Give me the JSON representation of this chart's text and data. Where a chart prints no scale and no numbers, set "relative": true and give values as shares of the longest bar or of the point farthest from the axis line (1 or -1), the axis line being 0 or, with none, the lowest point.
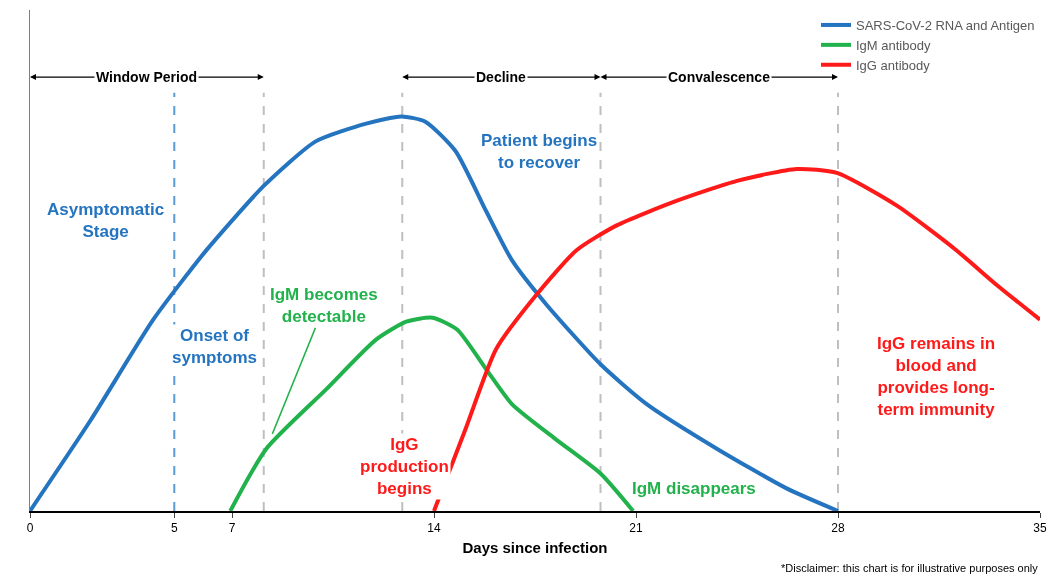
{
  "chart_data": {
    "type": "line",
    "relative": true,
    "xlabel": "Days since infection",
    "xlim": [
      0,
      35
    ],
    "xticks": [
      0,
      5,
      7,
      14,
      21,
      28,
      35
    ],
    "series": [
      {
        "name": "SARS-CoV-2 RNA and Antigen",
        "color": "#2474c0",
        "x": [
          0,
          2.1,
          4.27,
          6.1,
          8.1,
          9.9,
          11.65,
          12.87,
          13.7,
          14.75,
          15.8,
          16.7,
          17.9,
          19.77,
          21.37,
          23.8,
          26.2,
          28
        ],
        "values": [
          0,
          0.23,
          0.485,
          0.66,
          0.824,
          0.937,
          0.982,
          1.0,
          0.987,
          0.912,
          0.761,
          0.636,
          0.523,
          0.372,
          0.271,
          0.158,
          0.058,
          0
        ]
      },
      {
        "name": "IgM antibody",
        "color": "#22b24c",
        "x": [
          6.94,
          8.19,
          10.27,
          12.0,
          13.04,
          13.95,
          14.8,
          15.8,
          16.7,
          18.2,
          19.77,
          20.9
        ],
        "values": [
          0,
          0.158,
          0.309,
          0.435,
          0.48,
          0.49,
          0.46,
          0.36,
          0.271,
          0.183,
          0.095,
          0
        ]
      },
      {
        "name": "IgG antibody",
        "color": "#ff1a1a",
        "x": [
          14,
          15.1,
          16.15,
          17.55,
          18.94,
          20.33,
          22.4,
          24.5,
          26.57,
          27.96,
          30.04,
          32.1,
          33.5,
          35
        ],
        "values": [
          0,
          0.209,
          0.41,
          0.548,
          0.661,
          0.724,
          0.786,
          0.837,
          0.867,
          0.857,
          0.774,
          0.661,
          0.573,
          0.485
        ]
      }
    ],
    "ref_lines": [
      {
        "axis": "x",
        "value": 5,
        "color": "#5b9bd5",
        "line_style": "dashed"
      },
      {
        "axis": "x",
        "value": 8.1,
        "color": "#bfbfbf",
        "line_style": "dashed"
      },
      {
        "axis": "x",
        "value": 12.9,
        "color": "#bfbfbf",
        "line_style": "dashed"
      },
      {
        "axis": "x",
        "value": 19.77,
        "color": "#bfbfbf",
        "line_style": "dashed"
      },
      {
        "axis": "x",
        "value": 28,
        "color": "#bfbfbf",
        "line_style": "dashed"
      }
    ],
    "annotations": [
      "Window Period",
      "Decline",
      "Convalescence",
      "Asymptomatic\nStage",
      "Onset of\nsymptoms",
      "Patient begins\nto recover",
      {
        "text": "IgM becomes\ndetectable",
        "x": 8.19,
        "y": 0.158
      },
      "IgG\nproduction\nbegins",
      "IgM disappears",
      "IgG remains in\nblood and\nprovides long-\nterm immunity",
      "*Disclaimer: this chart is for illustrative purposes only"
    ],
    "legend": "top right",
    "grid": false,
    "marker": "none",
    "line_style": "solid"
  }
}
